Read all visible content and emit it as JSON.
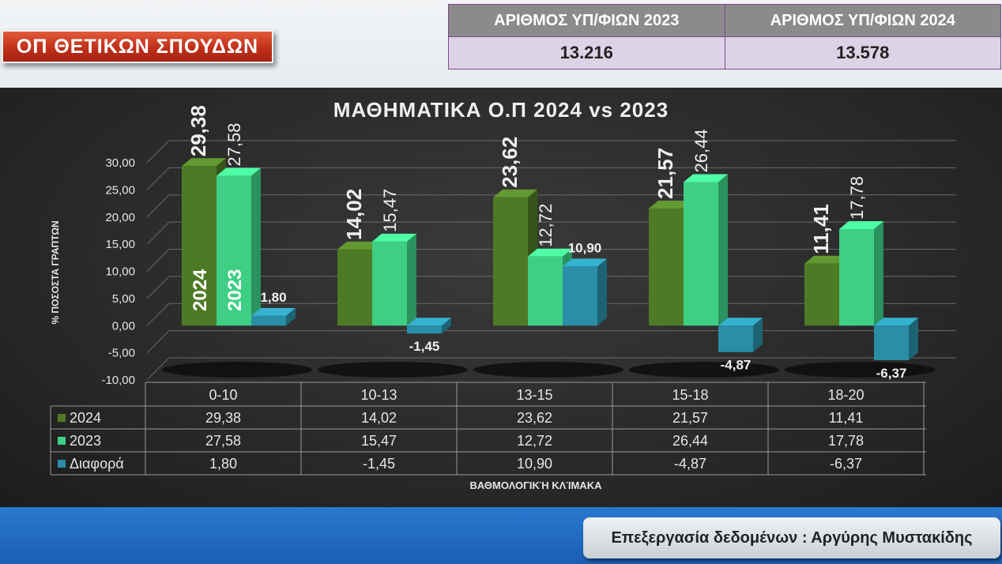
{
  "badge": {
    "text": "ΟΠ ΘΕΤΙΚΩΝ ΣΠΟΥΔΩΝ"
  },
  "counts": {
    "headers": [
      "ΑΡΙΘΜΟΣ ΥΠ/ΦΙΩΝ 2023",
      "ΑΡΙΘΜΟΣ ΥΠ/ΦΙΩΝ 2024"
    ],
    "values": [
      "13.216",
      "13.578"
    ]
  },
  "credit": "Επεξεργασία δεδομένων : Αργύρης Μυστακίδης",
  "colors": {
    "s2024": "#4e7a26",
    "s2023": "#3ecf85",
    "diff": "#2a8ea6"
  },
  "chart_data": {
    "type": "bar",
    "title": "ΜΑΘΗΜΑΤΙΚΑ  Ο.Π 2024 vs 2023",
    "xlabel": "ΒΑΘΜΟΛΟΓΙΚΉ ΚΛΊΜΑΚΑ",
    "ylabel": "% ΠΟΣΟΣΤΑ ΓΡΑΠΤΩΝ",
    "ylim": [
      -10,
      30
    ],
    "yticks": [
      "30,00",
      "25,00",
      "20,00",
      "15,00",
      "10,00",
      "5,00",
      "0,00",
      "-5,00",
      "-10,00"
    ],
    "categories": [
      "0-10",
      "10-13",
      "13-15",
      "15-18",
      "18-20"
    ],
    "series": [
      {
        "name": "2024",
        "values": [
          29.38,
          14.02,
          23.62,
          21.57,
          11.41
        ],
        "labels": [
          "29,38",
          "14,02",
          "23,62",
          "21,57",
          "11,41"
        ]
      },
      {
        "name": "2023",
        "values": [
          27.58,
          15.47,
          12.72,
          26.44,
          17.78
        ],
        "labels": [
          "27,58",
          "15,47",
          "12,72",
          "26,44",
          "17,78"
        ]
      },
      {
        "name": "Διαφορά",
        "values": [
          1.8,
          -1.45,
          10.9,
          -4.87,
          -6.37
        ],
        "labels": [
          "1,80",
          "-1,45",
          "10,90",
          "-4,87",
          "-6,37"
        ]
      }
    ],
    "bar_annotations": [
      "2024",
      "2023"
    ],
    "legend": "data-table",
    "grid": true
  }
}
